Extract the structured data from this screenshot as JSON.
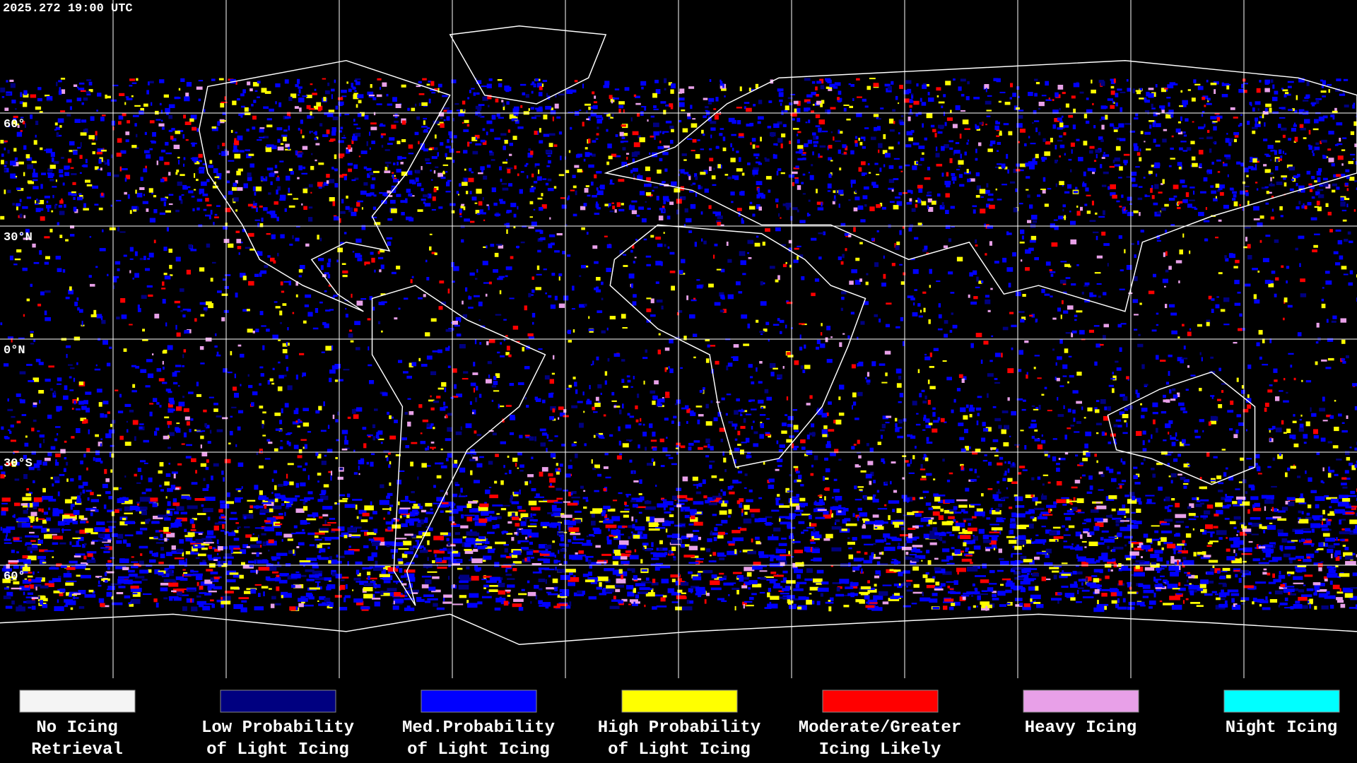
{
  "header": {
    "timestamp": "2025.272 19:00 UTC"
  },
  "map": {
    "lat_labels": [
      "60°",
      "30°N",
      "0°N",
      "30°S",
      "60°"
    ]
  },
  "legend": {
    "items": [
      {
        "color": "#f4f4f4",
        "lines": [
          "No Icing",
          "Retrieval"
        ]
      },
      {
        "color": "#000080",
        "lines": [
          "Low Probability",
          "of Light Icing"
        ]
      },
      {
        "color": "#0000ff",
        "lines": [
          "Med.Probability",
          "of Light Icing"
        ]
      },
      {
        "color": "#ffff00",
        "lines": [
          "High Probability",
          "of Light Icing"
        ]
      },
      {
        "color": "#ff0000",
        "lines": [
          "Moderate/Greater",
          "Icing Likely"
        ]
      },
      {
        "color": "#e8a0e8",
        "lines": [
          "Heavy Icing"
        ]
      },
      {
        "color": "#00ffff",
        "lines": [
          "Night Icing"
        ]
      }
    ]
  }
}
